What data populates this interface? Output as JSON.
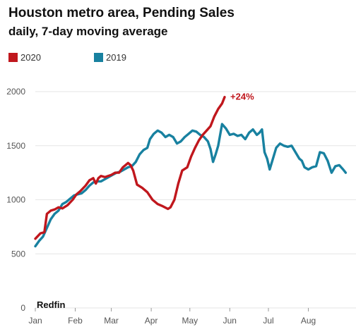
{
  "chart_data": {
    "type": "line",
    "title": "Houston metro area, Pending Sales",
    "subtitle": "daily, 7-day moving average",
    "source": "Redfin",
    "x_unit": "day of year",
    "xlabels": [
      "Jan",
      "Feb",
      "Mar",
      "Apr",
      "May",
      "Jun",
      "Jul",
      "Aug"
    ],
    "xlabel_days": [
      1,
      32,
      60,
      91,
      121,
      152,
      182,
      213
    ],
    "xlim": [
      1,
      250
    ],
    "ylim": [
      0,
      2000
    ],
    "yticks": [
      0,
      500,
      1000,
      1500,
      2000
    ],
    "ytick_labels": [
      "0",
      "500",
      "1000",
      "1500",
      "2000"
    ],
    "grid": true,
    "legend_position": "top-left",
    "series": [
      {
        "name": "2020",
        "color": "#c0171d",
        "points": [
          [
            1,
            640
          ],
          [
            5,
            690
          ],
          [
            8,
            700
          ],
          [
            10,
            870
          ],
          [
            13,
            900
          ],
          [
            16,
            910
          ],
          [
            19,
            930
          ],
          [
            22,
            920
          ],
          [
            26,
            950
          ],
          [
            30,
            1000
          ],
          [
            33,
            1050
          ],
          [
            36,
            1080
          ],
          [
            40,
            1130
          ],
          [
            43,
            1180
          ],
          [
            46,
            1200
          ],
          [
            48,
            1150
          ],
          [
            50,
            1200
          ],
          [
            52,
            1220
          ],
          [
            55,
            1210
          ],
          [
            60,
            1230
          ],
          [
            63,
            1250
          ],
          [
            66,
            1250
          ],
          [
            69,
            1300
          ],
          [
            71,
            1320
          ],
          [
            73,
            1340
          ],
          [
            75,
            1320
          ],
          [
            77,
            1270
          ],
          [
            80,
            1140
          ],
          [
            84,
            1110
          ],
          [
            88,
            1070
          ],
          [
            92,
            1000
          ],
          [
            96,
            960
          ],
          [
            100,
            940
          ],
          [
            104,
            915
          ],
          [
            106,
            930
          ],
          [
            109,
            1000
          ],
          [
            112,
            1150
          ],
          [
            115,
            1270
          ],
          [
            119,
            1300
          ],
          [
            122,
            1400
          ],
          [
            125,
            1480
          ],
          [
            128,
            1550
          ],
          [
            131,
            1600
          ],
          [
            134,
            1640
          ],
          [
            137,
            1680
          ],
          [
            140,
            1770
          ],
          [
            143,
            1840
          ],
          [
            146,
            1890
          ],
          [
            148,
            1950
          ]
        ],
        "end_label": "+24%"
      },
      {
        "name": "2019",
        "color": "#1881a0",
        "points": [
          [
            1,
            570
          ],
          [
            4,
            620
          ],
          [
            7,
            660
          ],
          [
            10,
            740
          ],
          [
            13,
            820
          ],
          [
            16,
            870
          ],
          [
            19,
            900
          ],
          [
            22,
            960
          ],
          [
            25,
            980
          ],
          [
            28,
            1010
          ],
          [
            31,
            1040
          ],
          [
            34,
            1050
          ],
          [
            37,
            1060
          ],
          [
            40,
            1090
          ],
          [
            43,
            1130
          ],
          [
            46,
            1160
          ],
          [
            49,
            1170
          ],
          [
            52,
            1170
          ],
          [
            55,
            1190
          ],
          [
            58,
            1210
          ],
          [
            61,
            1230
          ],
          [
            64,
            1250
          ],
          [
            67,
            1260
          ],
          [
            70,
            1280
          ],
          [
            73,
            1300
          ],
          [
            76,
            1310
          ],
          [
            79,
            1350
          ],
          [
            82,
            1420
          ],
          [
            85,
            1460
          ],
          [
            88,
            1480
          ],
          [
            90,
            1560
          ],
          [
            93,
            1610
          ],
          [
            96,
            1640
          ],
          [
            99,
            1620
          ],
          [
            102,
            1580
          ],
          [
            105,
            1600
          ],
          [
            108,
            1580
          ],
          [
            111,
            1520
          ],
          [
            114,
            1540
          ],
          [
            117,
            1580
          ],
          [
            120,
            1610
          ],
          [
            123,
            1640
          ],
          [
            126,
            1630
          ],
          [
            129,
            1600
          ],
          [
            132,
            1580
          ],
          [
            135,
            1540
          ],
          [
            137,
            1470
          ],
          [
            139,
            1350
          ],
          [
            141,
            1420
          ],
          [
            143,
            1500
          ],
          [
            146,
            1700
          ],
          [
            149,
            1660
          ],
          [
            152,
            1600
          ],
          [
            155,
            1610
          ],
          [
            158,
            1590
          ],
          [
            161,
            1600
          ],
          [
            164,
            1560
          ],
          [
            167,
            1620
          ],
          [
            170,
            1650
          ],
          [
            173,
            1600
          ],
          [
            175,
            1620
          ],
          [
            177,
            1650
          ],
          [
            179,
            1440
          ],
          [
            181,
            1380
          ],
          [
            183,
            1280
          ],
          [
            185,
            1360
          ],
          [
            188,
            1480
          ],
          [
            191,
            1520
          ],
          [
            194,
            1500
          ],
          [
            197,
            1490
          ],
          [
            200,
            1500
          ],
          [
            203,
            1440
          ],
          [
            206,
            1380
          ],
          [
            208,
            1360
          ],
          [
            210,
            1300
          ],
          [
            213,
            1280
          ],
          [
            216,
            1300
          ],
          [
            219,
            1310
          ],
          [
            222,
            1440
          ],
          [
            225,
            1430
          ],
          [
            228,
            1360
          ],
          [
            231,
            1250
          ],
          [
            234,
            1310
          ],
          [
            237,
            1320
          ],
          [
            240,
            1280
          ],
          [
            242,
            1250
          ]
        ]
      }
    ]
  }
}
